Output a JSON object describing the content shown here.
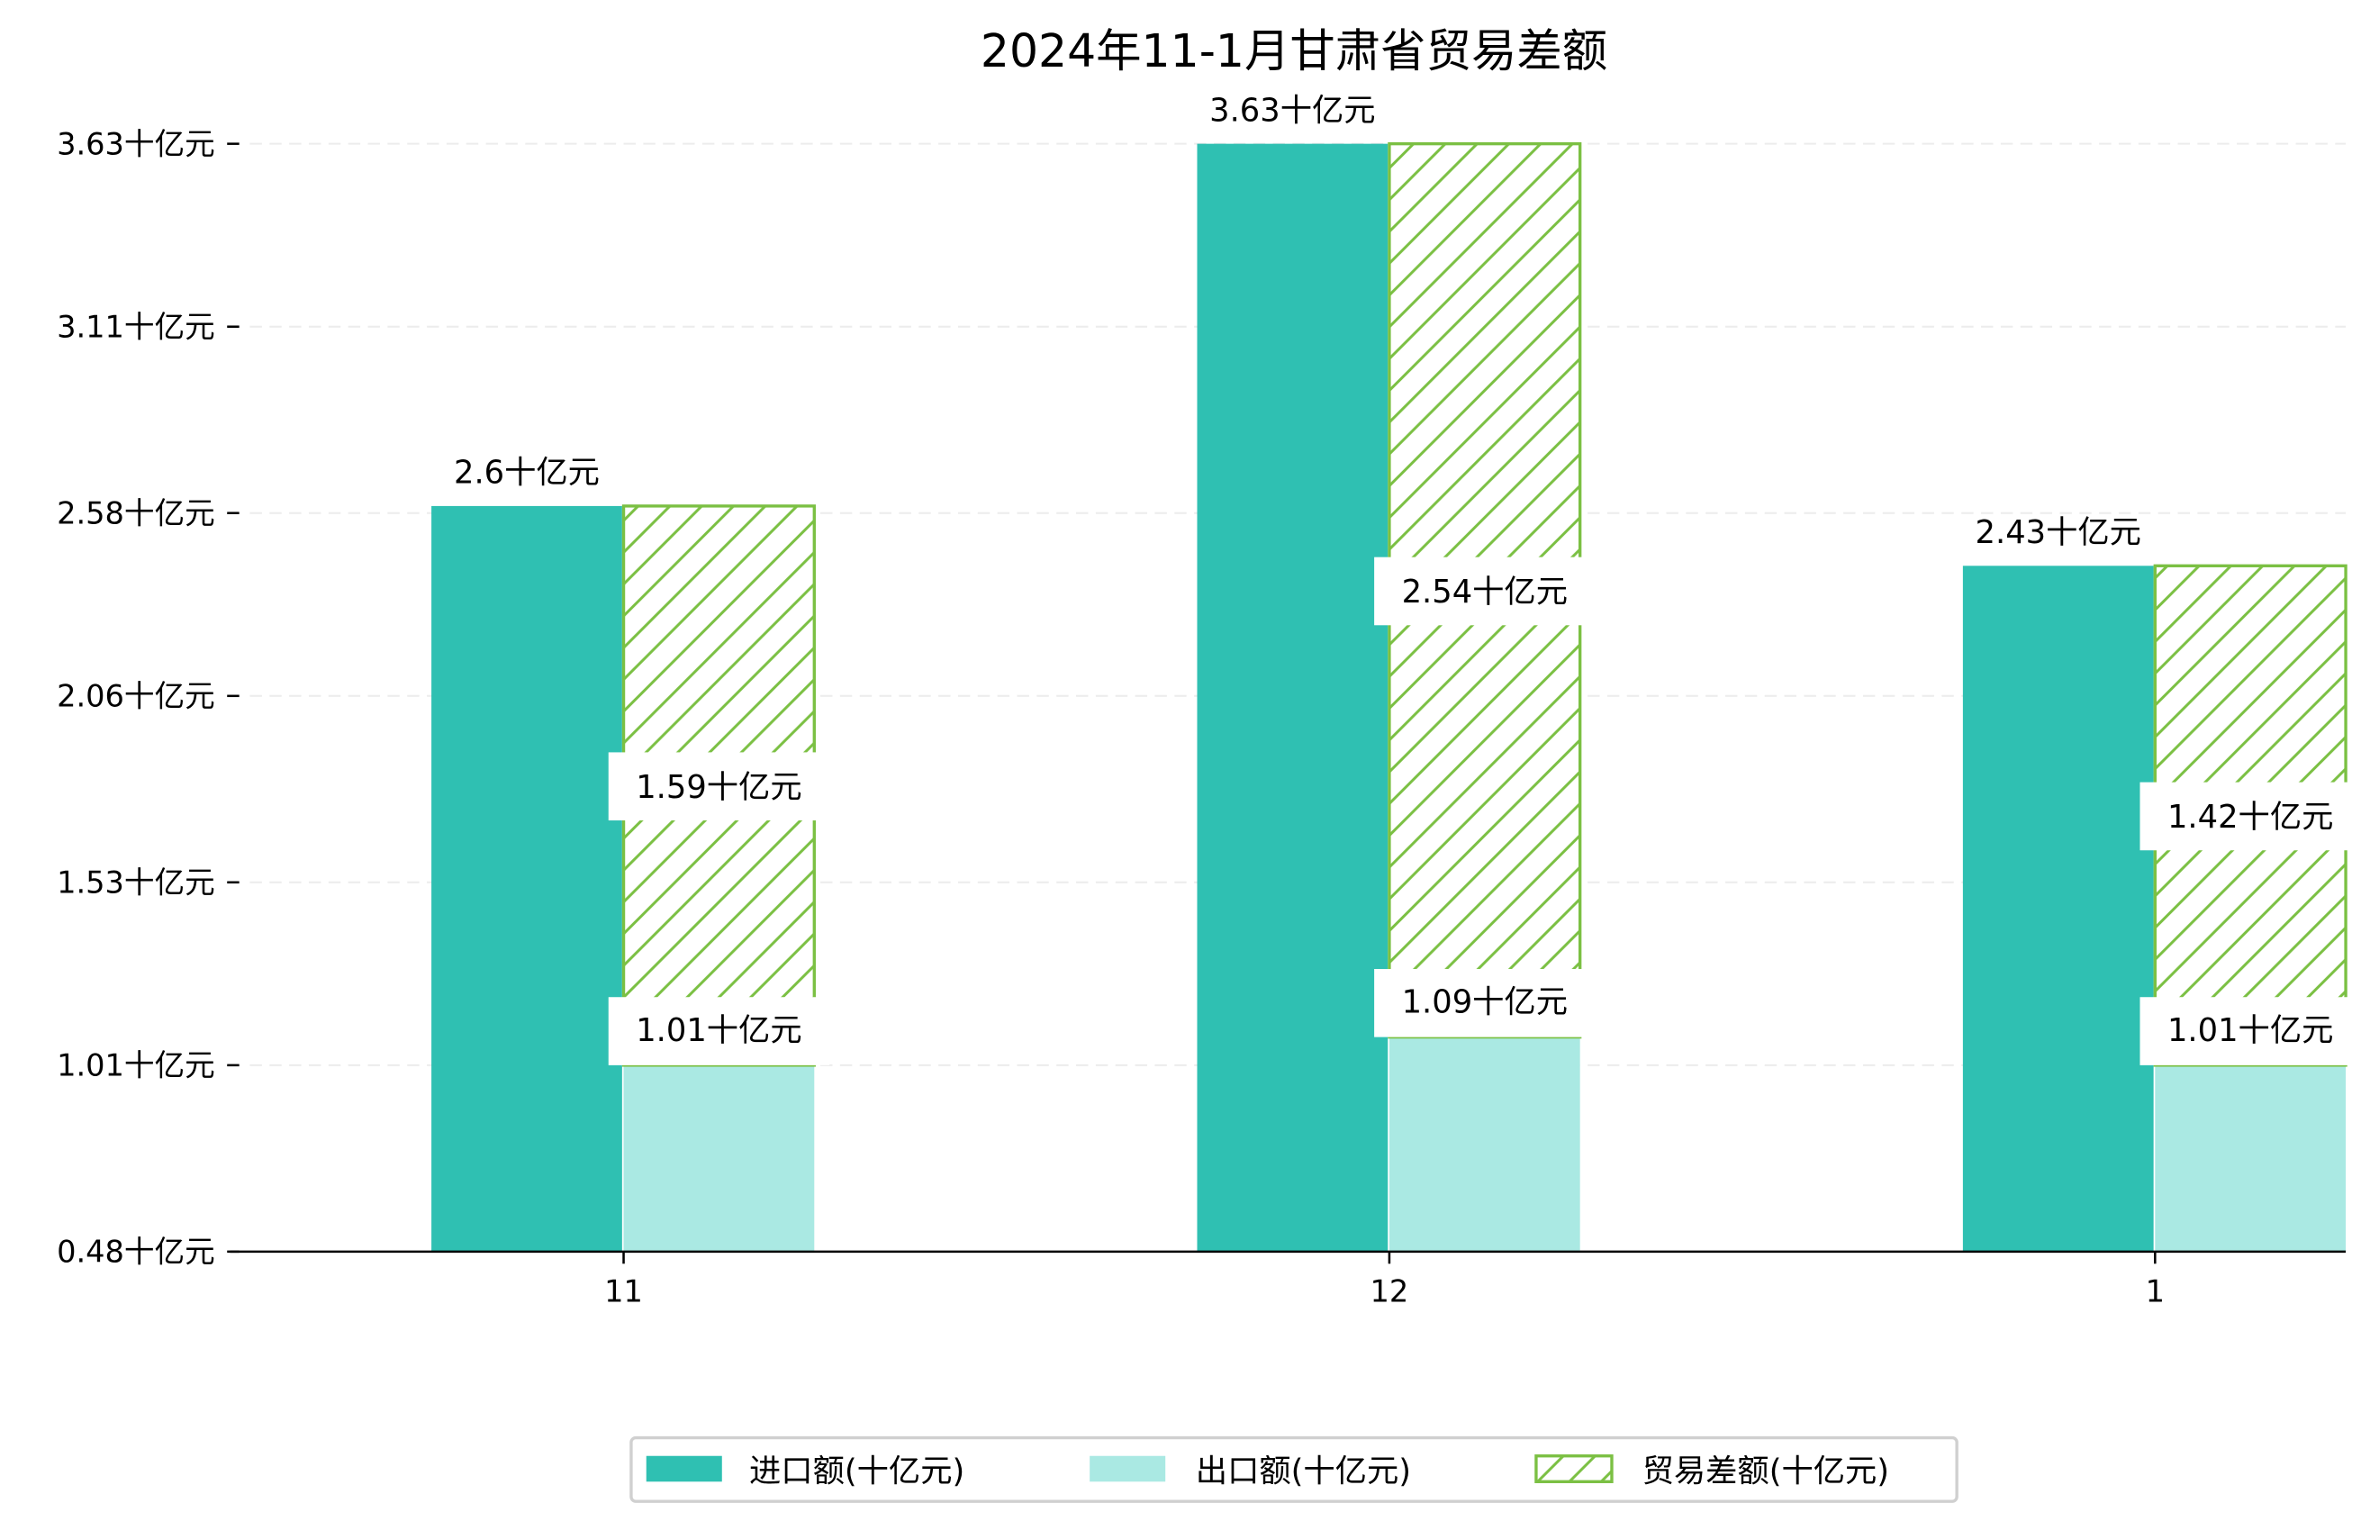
{
  "chart_data": {
    "type": "bar",
    "title": "2024年11-1月甘肃省贸易差额",
    "xlabel": "",
    "ylabel": "",
    "categories": [
      "11",
      "12",
      "1"
    ],
    "series": [
      {
        "name": "进口额(十亿元)",
        "values": [
          2.6,
          3.63,
          2.43
        ],
        "labels": [
          "2.6十亿元",
          "3.63十亿元",
          "2.43十亿元"
        ],
        "color": "#2fc0b2"
      },
      {
        "name": "出口额(十亿元)",
        "values": [
          1.01,
          1.09,
          1.01
        ],
        "labels": [
          "1.01十亿元",
          "1.09十亿元",
          "1.01十亿元"
        ],
        "color": "#aae9e3"
      },
      {
        "name": "贸易差额(十亿元)",
        "values": [
          1.59,
          2.54,
          1.42
        ],
        "labels": [
          "1.59十亿元",
          "2.54十亿元",
          "1.42十亿元"
        ],
        "color": "#7bc043",
        "stacked_on": "出口额(十亿元)",
        "hatch": "/"
      }
    ],
    "ylim": [
      0.48,
      3.63
    ],
    "yticks": [
      0.48,
      1.01,
      1.53,
      2.06,
      2.58,
      3.11,
      3.63
    ],
    "ytick_labels": [
      "0.48十亿元",
      "1.01十亿元",
      "1.53十亿元",
      "2.06十亿元",
      "2.58十亿元",
      "3.11十亿元",
      "3.63十亿元"
    ],
    "grid": true,
    "legend_position": "bottom-center"
  }
}
